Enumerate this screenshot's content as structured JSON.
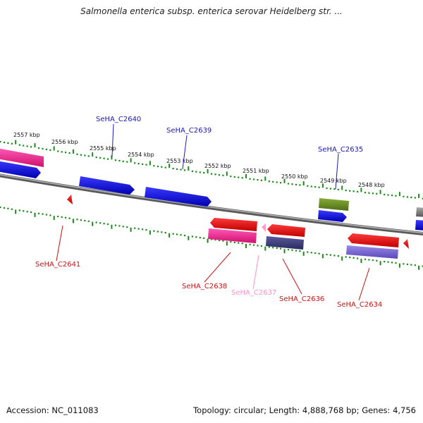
{
  "title": "Salmonella enterica subsp. enterica serovar Heidelberg str. ...",
  "accession": "Accession: NC_011083",
  "summary": "Topology: circular; Length: 4,888,768 bp; Genes: 4,756",
  "colors": {
    "backbone": "#808080",
    "tick_track": "#1a8a1a",
    "forward_gene": "#0a0ae0",
    "reverse_gene": "#ee1111",
    "pink_gene": "#ee2a98",
    "pseudogene_label": "#ff8fc8",
    "olive_gene": "#6b8e23",
    "navy_gene": "#3c3c78",
    "lavender_gene": "#7a68d6"
  },
  "scale_labels": [
    "2557 kbp",
    "2556 kbp",
    "2555 kbp",
    "2554 kbp",
    "2553 kbp",
    "2552 kbp",
    "2551 kbp",
    "2550 kbp",
    "2549 kbp",
    "2548 kbp"
  ],
  "gene_labels": [
    {
      "id": "SeHA_C2640",
      "color": "#1a1ab0"
    },
    {
      "id": "SeHA_C2639",
      "color": "#1a1ab0"
    },
    {
      "id": "SeHA_C2635",
      "color": "#1a1ab0"
    },
    {
      "id": "SeHA_C2641",
      "color": "#cc1111"
    },
    {
      "id": "SeHA_C2638",
      "color": "#cc1111"
    },
    {
      "id": "SeHA_C2637",
      "color": "#ff8fc8"
    },
    {
      "id": "SeHA_C2636",
      "color": "#cc1111"
    },
    {
      "id": "SeHA_C2634",
      "color": "#cc1111"
    }
  ]
}
